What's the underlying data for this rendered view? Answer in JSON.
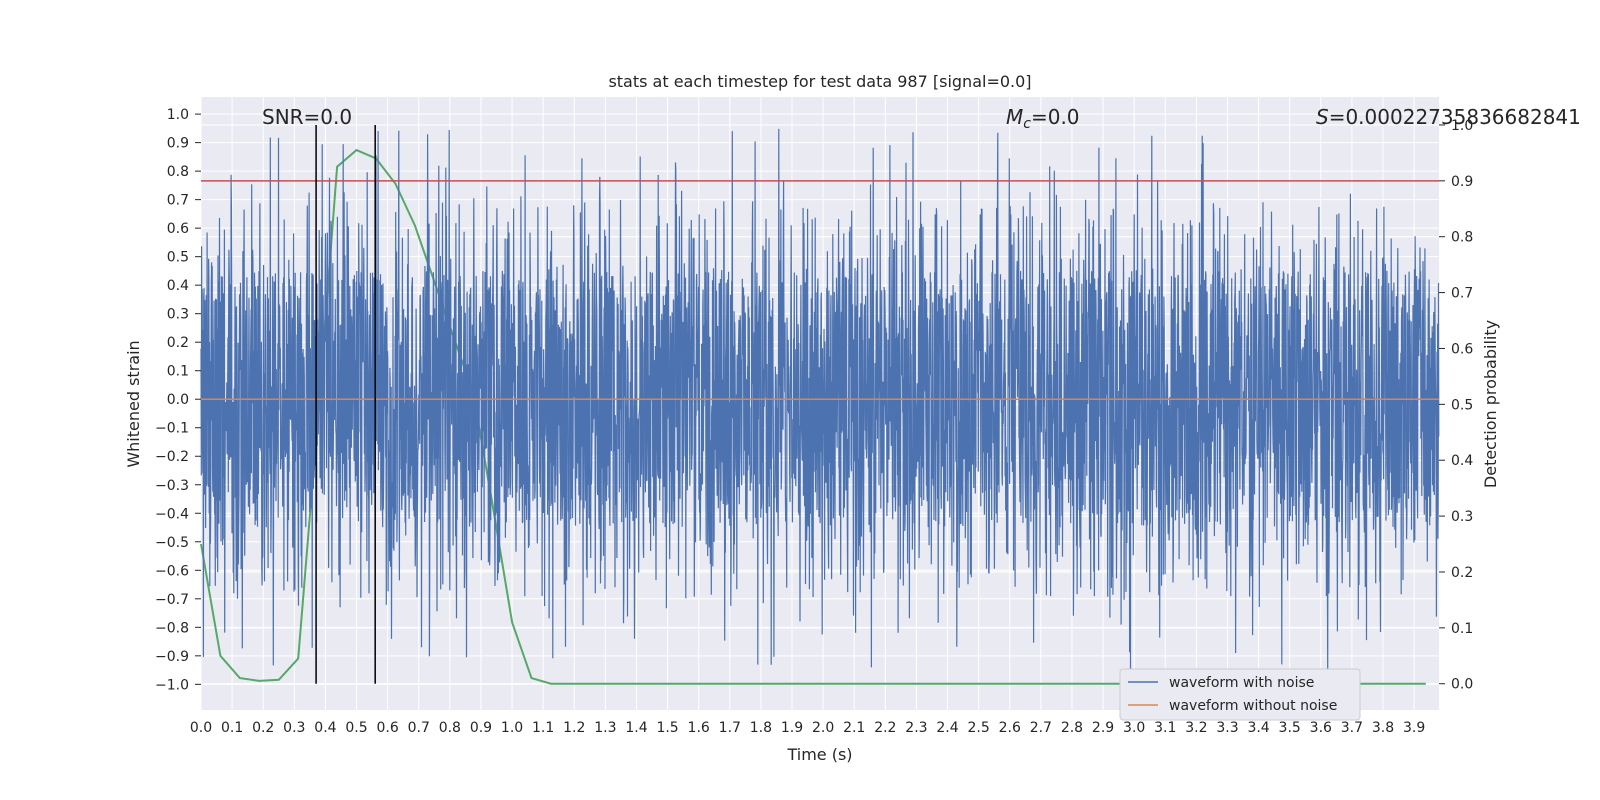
{
  "chart_data": {
    "type": "line",
    "title": "stats at each timestep for test data 987 [signal=0.0]",
    "xlabel": "Time (s)",
    "ylabel": "Whitened strain",
    "y2label": "Detection probability",
    "xlim": [
      0.0,
      3.98
    ],
    "ylim": [
      -1.09,
      1.06
    ],
    "y2lim": [
      -0.047,
      1.05
    ],
    "x_ticks": [
      "0.0",
      "0.1",
      "0.2",
      "0.3",
      "0.4",
      "0.5",
      "0.6",
      "0.7",
      "0.8",
      "0.9",
      "1.0",
      "1.1",
      "1.2",
      "1.3",
      "1.4",
      "1.5",
      "1.6",
      "1.7",
      "1.8",
      "1.9",
      "2.0",
      "2.1",
      "2.2",
      "2.3",
      "2.4",
      "2.5",
      "2.6",
      "2.7",
      "2.8",
      "2.9",
      "3.0",
      "3.1",
      "3.2",
      "3.3",
      "3.4",
      "3.5",
      "3.6",
      "3.7",
      "3.8",
      "3.9"
    ],
    "y_ticks": [
      "1.0",
      "0.9",
      "0.8",
      "0.7",
      "0.6",
      "0.5",
      "0.4",
      "0.3",
      "0.2",
      "0.1",
      "0.0",
      "−0.1",
      "−0.2",
      "−0.3",
      "−0.4",
      "−0.5",
      "−0.6",
      "−0.7",
      "−0.8",
      "−0.9",
      "−1.0"
    ],
    "y2_ticks": [
      "1.0",
      "0.9",
      "0.8",
      "0.7",
      "0.6",
      "0.5",
      "0.4",
      "0.3",
      "0.2",
      "0.1",
      "0.0"
    ],
    "grid": true,
    "legend_position": "lower-right",
    "annotations": {
      "snr": "SNR=0.0",
      "mc_symbol": "M",
      "mc_sub": "c",
      "mc_value": "=0.0",
      "s_symbol": "S",
      "s_value": "=0.00022735836682841"
    },
    "threshold_prob": 0.9,
    "vlines_x": [
      0.37,
      0.56
    ],
    "series": [
      {
        "name": "waveform with noise",
        "color": "#4c72b0",
        "description": "whitened strain noise, approx. uniform in [-1, 1], 4096 samples over 4 s",
        "sample_rate": 1024,
        "amplitude": 1.0
      },
      {
        "name": "waveform without noise",
        "color": "#dd8452",
        "x": [
          0.0,
          3.98
        ],
        "y": [
          0.0,
          0.0
        ]
      },
      {
        "name": "detection probability",
        "color": "#55a868",
        "axis": "right",
        "x": [
          0.0,
          0.0625,
          0.125,
          0.1875,
          0.25,
          0.3125,
          0.375,
          0.4375,
          0.5,
          0.5625,
          0.625,
          0.6875,
          0.75,
          0.8125,
          0.875,
          0.9375,
          1.0,
          1.0625,
          1.125,
          1.1875,
          3.9375
        ],
        "y": [
          0.25,
          0.05,
          0.01,
          0.005,
          0.007,
          0.045,
          0.47,
          0.925,
          0.955,
          0.94,
          0.895,
          0.82,
          0.72,
          0.62,
          0.52,
          0.32,
          0.11,
          0.01,
          0.0,
          0.0,
          0.0
        ]
      }
    ],
    "legend": [
      "waveform with noise",
      "waveform without noise"
    ]
  }
}
